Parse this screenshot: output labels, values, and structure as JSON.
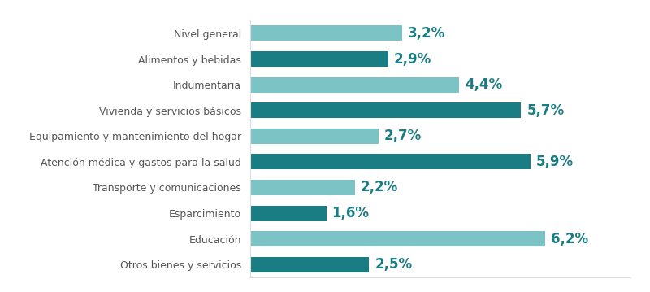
{
  "chart_data": {
    "type": "bar",
    "orientation": "horizontal",
    "categories": [
      "Nivel general",
      "Alimentos y bebidas",
      "Indumentaria",
      "Vivienda y servicios básicos",
      "Equipamiento y mantenimiento del hogar",
      "Atención médica y gastos para la salud",
      "Transporte y comunicaciones",
      "Esparcimiento",
      "Educación",
      "Otros bienes y servicios"
    ],
    "values": [
      3.2,
      2.9,
      4.4,
      5.7,
      2.7,
      5.9,
      2.2,
      1.6,
      6.2,
      2.5
    ],
    "value_labels": [
      "3,2%",
      "2,9%",
      "4,4%",
      "5,7%",
      "2,7%",
      "5,9%",
      "2,2%",
      "1,6%",
      "6,2%",
      "2,5%"
    ],
    "colors": [
      "#7cc3c5",
      "#1b7d84",
      "#7cc3c5",
      "#1b7d84",
      "#7cc3c5",
      "#1b7d84",
      "#7cc3c5",
      "#1b7d84",
      "#7cc3c5",
      "#1b7d84"
    ],
    "xlim": [
      0,
      8
    ],
    "data_labels": true,
    "tick_labels": "y",
    "grid": false
  }
}
